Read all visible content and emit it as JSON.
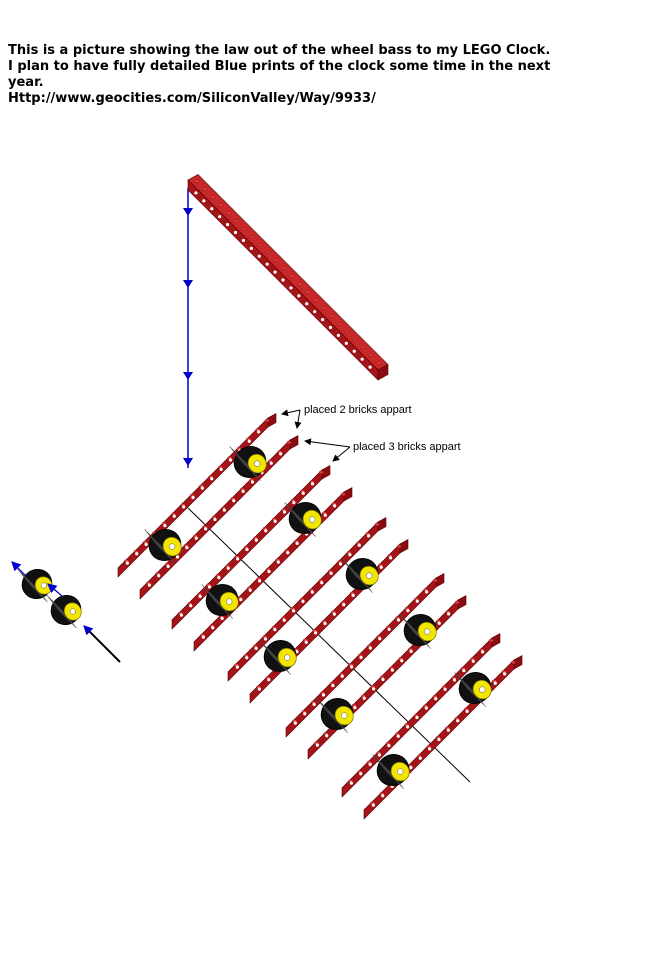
{
  "caption": {
    "line1": "This is a picture showing the law out of the wheel bass to my LEGO Clock.",
    "line2": "I plan to have fully detailed Blue prints of the clock some time in the next",
    "line3": "year.",
    "line4": "Http://www.geocities.com/SiliconValley/Way/9933/"
  },
  "annotations": {
    "spacing_a": "placed 2 bricks appart",
    "spacing_b": "placed 3 bricks appart"
  },
  "colors": {
    "brick_top": "#c8282a",
    "brick_side": "#8a0c10",
    "brick_front": "#a51418",
    "hole": "#ffffff",
    "tire": "#111111",
    "hub": "#f2e600",
    "arrow_blue": "#0000cc",
    "axle": "#000000"
  }
}
